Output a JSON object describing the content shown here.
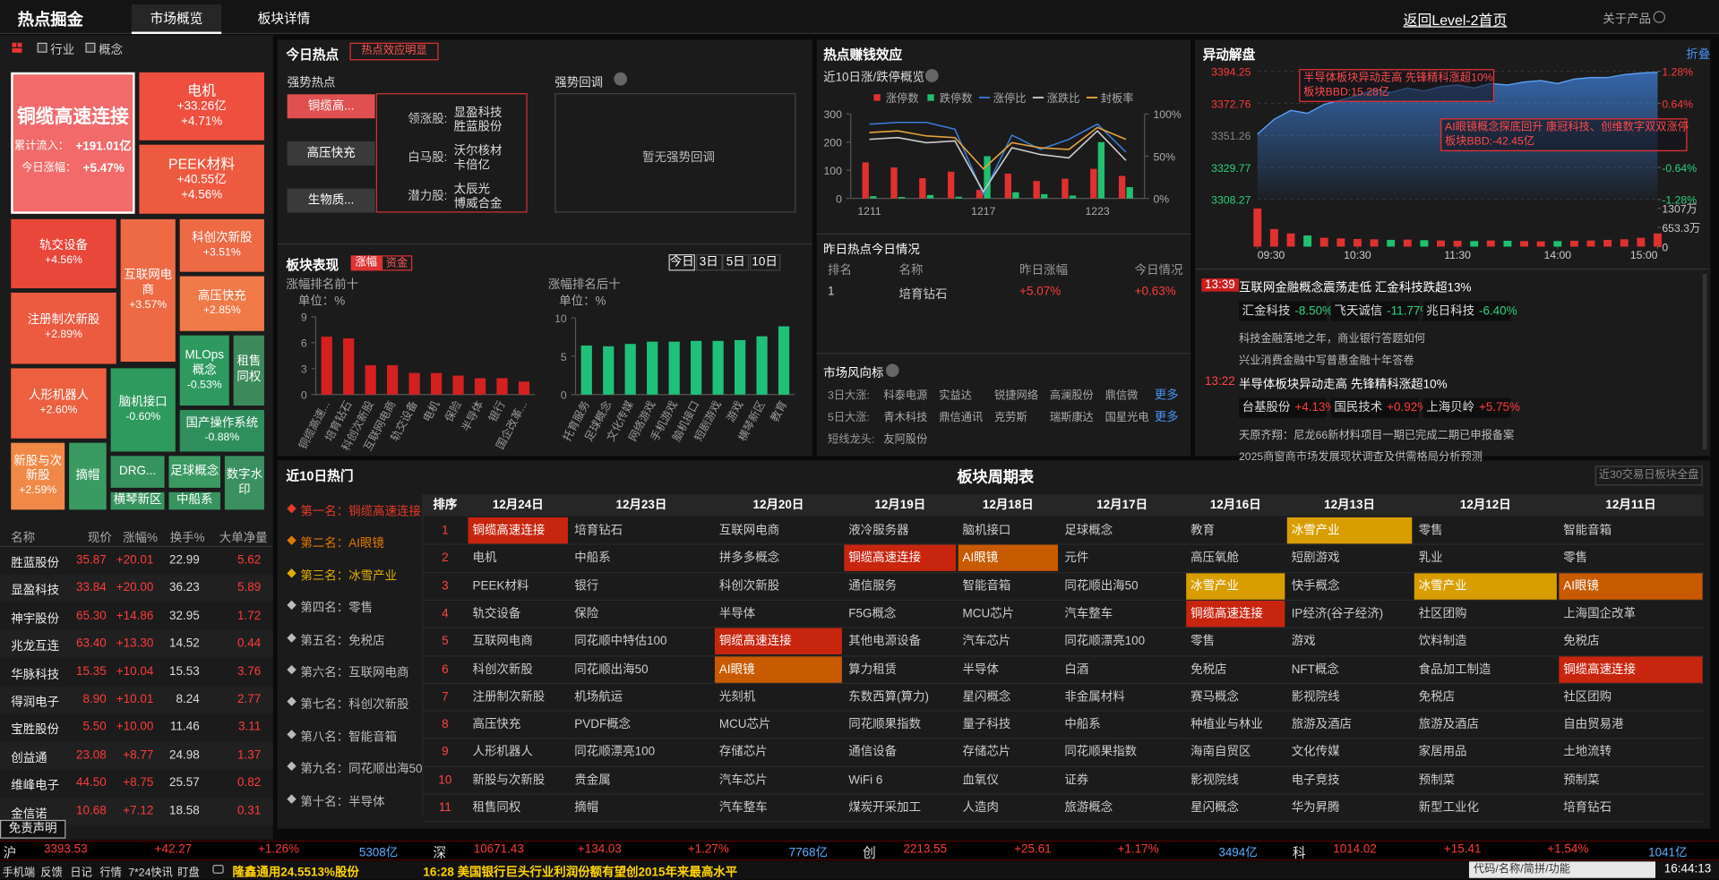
{
  "header": {
    "title": "热点掘金",
    "tabs": [
      "市场概览",
      "板块详情"
    ],
    "back_link": "返回Level-2首页",
    "about": "关于产品"
  },
  "filters": [
    "行业",
    "概念"
  ],
  "treemap": [
    {
      "name": "铜缆高速连接",
      "details": [
        {
          "label": "累计流入：",
          "value": "+191.01亿"
        },
        {
          "label": "今日涨幅：",
          "value": "+5.47%"
        }
      ],
      "color": "#f26a6a"
    },
    {
      "name": "电机",
      "lines": [
        "+33.26亿",
        "+4.71%"
      ],
      "color": "#ef4f3f"
    },
    {
      "name": "PEEK材料",
      "lines": [
        "+40.55亿",
        "+4.56%"
      ],
      "color": "#ee5a40"
    },
    {
      "name": "轨交设备",
      "lines": [
        "+4.56%"
      ],
      "color": "#e8473a"
    },
    {
      "name": "互联网电商",
      "lines": [
        "+3.57%"
      ],
      "color": "#ee6a45"
    },
    {
      "name": "科创次新股",
      "lines": [
        "+3.51%"
      ],
      "color": "#ee6a45"
    },
    {
      "name": "高压快充",
      "lines": [
        "+2.85%"
      ],
      "color": "#f07a48"
    },
    {
      "name": "注册制次新股",
      "lines": [
        "+2.89%"
      ],
      "color": "#ec5a40"
    },
    {
      "name": "MLOps概念",
      "lines": [
        "-0.53%"
      ],
      "color": "#2e9a60"
    },
    {
      "name": "租售同权",
      "lines": [],
      "color": "#3c8a5a"
    },
    {
      "name": "人形机器人",
      "lines": [
        "+2.60%"
      ],
      "color": "#ec6040"
    },
    {
      "name": "脑机接口",
      "lines": [
        "-0.60%"
      ],
      "color": "#2f9a5e"
    },
    {
      "name": "国产操作系统",
      "lines": [
        "-0.88%"
      ],
      "color": "#2e8f5c"
    },
    {
      "name": "新股与次新股",
      "lines": [
        "+2.59%"
      ],
      "color": "#f08848"
    },
    {
      "name": "摘帽",
      "lines": [],
      "color": "#3a9a62"
    },
    {
      "name": "DRG...",
      "lines": [],
      "color": "#37945e"
    },
    {
      "name": "足球概念",
      "lines": [],
      "color": "#3a9a62"
    },
    {
      "name": "数字水印",
      "lines": [],
      "color": "#3a9060"
    },
    {
      "name": "横琴新区",
      "lines": [],
      "color": "#37945e"
    },
    {
      "name": "中船系",
      "lines": [],
      "color": "#37945e"
    }
  ],
  "stock_table": {
    "columns": [
      "名称",
      "现价",
      "涨幅%",
      "换手%",
      "大单净量"
    ],
    "rows": [
      [
        "胜蓝股份",
        "35.87",
        "+20.01",
        "22.99",
        "5.62"
      ],
      [
        "显盈科技",
        "33.84",
        "+20.00",
        "36.23",
        "5.89"
      ],
      [
        "神宇股份",
        "65.30",
        "+14.86",
        "32.95",
        "1.72"
      ],
      [
        "兆龙互连",
        "63.40",
        "+13.30",
        "14.52",
        "0.44"
      ],
      [
        "华脉科技",
        "15.35",
        "+10.04",
        "15.53",
        "3.76"
      ],
      [
        "得润电子",
        "8.90",
        "+10.01",
        "8.24",
        "2.77"
      ],
      [
        "宝胜股份",
        "5.50",
        "+10.00",
        "11.46",
        "3.11"
      ],
      [
        "创益通",
        "23.08",
        "+8.77",
        "24.98",
        "1.37"
      ],
      [
        "维峰电子",
        "44.50",
        "+8.75",
        "25.57",
        "0.82"
      ],
      [
        "金信诺",
        "10.68",
        "+7.12",
        "18.58",
        "0.31"
      ]
    ]
  },
  "disclaimer": "免责声明",
  "today_hot": {
    "title": "今日热点",
    "badge": "热点效应明显",
    "strong_title": "强势热点",
    "strong_items": [
      "铜缆高...",
      "高压快充",
      "生物质..."
    ],
    "leaders": [
      {
        "label": "领涨股:",
        "stocks": [
          "显盈科技",
          "胜蓝股份"
        ]
      },
      {
        "label": "白马股:",
        "stocks": [
          "沃尔核材",
          "卡倍亿"
        ]
      },
      {
        "label": "潜力股:",
        "stocks": [
          "太辰光",
          "博威合金"
        ]
      }
    ],
    "pullback_title": "强势回调",
    "pullback_empty": "暂无强势回调"
  },
  "sector_perf": {
    "title": "板块表现",
    "toggles": [
      "涨幅",
      "资金"
    ],
    "periods": [
      "今日",
      "3日",
      "5日",
      "10日"
    ]
  },
  "money_effect": {
    "title": "热点赚钱效应",
    "subtitle": "近10日涨/跌停概览"
  },
  "yesterday": {
    "title": "昨日热点今日情况",
    "columns": [
      "排名",
      "名称",
      "昨日涨幅",
      "今日情况"
    ],
    "rows": [
      [
        "1",
        "培育钻石",
        "+5.07%",
        "+0.63%"
      ]
    ]
  },
  "vane": {
    "title": "市场风向标",
    "more": "更多",
    "rows": [
      {
        "label": "3日大涨:",
        "stocks": [
          "科泰电源",
          "实益达",
          "锐捷网络",
          "高澜股份",
          "鼎信微"
        ],
        "more": true
      },
      {
        "label": "5日大涨:",
        "stocks": [
          "青木科技",
          "鼎信通讯",
          "克劳斯",
          "瑞斯康达",
          "国星光电"
        ],
        "more": true
      },
      {
        "label": "短线龙头:",
        "stocks": [
          "友阿股份"
        ],
        "more": false
      }
    ]
  },
  "movement": {
    "title": "异动解盘",
    "fold": "折叠",
    "annotations": [
      [
        "半导体板块异动走高 先锋精科涨超10%",
        "板块BBD:15.28亿"
      ],
      [
        "AI眼镜概念探底回升 康冠科技、创维数字双双涨停",
        "板块BBD:-42.45亿"
      ]
    ],
    "news": [
      {
        "time": "13:39",
        "title": "互联网金融概念震荡走低 汇金科技跌超13%",
        "tags": [
          {
            "name": "汇金科技",
            "change": "-8.50%"
          },
          {
            "name": "飞天诚信",
            "change": "-11.77%"
          },
          {
            "name": "兆日科技",
            "change": "-6.40%"
          }
        ],
        "lines": [
          "科技金融落地之年，商业银行答题如何",
          "兴业消费金融中写普惠金融十年答卷"
        ]
      },
      {
        "time": "13:22",
        "title": "半导体板块异动走高 先锋精科涨超10%",
        "tags": [
          {
            "name": "台基股份",
            "change": "+4.13%"
          },
          {
            "name": "国民技术",
            "change": "+0.92%"
          },
          {
            "name": "上海贝岭",
            "change": "+5.75%"
          }
        ],
        "lines": [
          "天原齐翔：尼龙66新材料项目一期已完成二期已申报备案",
          "2025商窗商市场发展现状调查及供需格局分析预测"
        ]
      }
    ]
  },
  "hot10": {
    "title": "近10日热门",
    "items": [
      {
        "rank": "第一名：",
        "name": "铜缆高速连接"
      },
      {
        "rank": "第二名：",
        "name": "AI眼镜"
      },
      {
        "rank": "第三名：",
        "name": "冰雪产业"
      },
      {
        "rank": "第四名：",
        "name": "零售"
      },
      {
        "rank": "第五名：",
        "name": "免税店"
      },
      {
        "rank": "第六名：",
        "name": "互联网电商"
      },
      {
        "rank": "第七名：",
        "name": "科创次新股"
      },
      {
        "rank": "第八名：",
        "name": "智能音箱"
      },
      {
        "rank": "第九名：",
        "name": "同花顺出海50"
      },
      {
        "rank": "第十名：",
        "name": "半导体"
      }
    ]
  },
  "cycle_table": {
    "title": "板块周期表",
    "button": "近30交易日板块全盘",
    "columns": [
      "排序",
      "12月24日",
      "12月23日",
      "12月20日",
      "12月19日",
      "12月18日",
      "12月17日",
      "12月16日",
      "12月13日",
      "12月12日",
      "12月11日"
    ],
    "rows": [
      [
        "1",
        "铜缆高速连接",
        "培育钻石",
        "互联网电商",
        "液冷服务器",
        "脑机接口",
        "足球概念",
        "教育",
        "冰雪产业",
        "零售",
        "智能音箱"
      ],
      [
        "2",
        "电机",
        "中船系",
        "拼多多概念",
        "铜缆高速连接",
        "AI眼镜",
        "元件",
        "高压氧舱",
        "短剧游戏",
        "乳业",
        "零售"
      ],
      [
        "3",
        "PEEK材料",
        "银行",
        "科创次新股",
        "通信服务",
        "智能音箱",
        "同花顺出海50",
        "冰雪产业",
        "快手概念",
        "冰雪产业",
        "AI眼镜"
      ],
      [
        "4",
        "轨交设备",
        "保险",
        "半导体",
        "F5G概念",
        "MCU芯片",
        "汽车整车",
        "铜缆高速连接",
        "IP经济(谷子经济)",
        "社区团购",
        "上海国企改革"
      ],
      [
        "5",
        "互联网电商",
        "同花顺中特估100",
        "铜缆高速连接",
        "其他电源设备",
        "汽车芯片",
        "同花顺漂亮100",
        "零售",
        "游戏",
        "饮料制造",
        "免税店"
      ],
      [
        "6",
        "科创次新股",
        "同花顺出海50",
        "AI眼镜",
        "算力租赁",
        "半导体",
        "白酒",
        "免税店",
        "NFT概念",
        "食品加工制造",
        "铜缆高速连接"
      ],
      [
        "7",
        "注册制次新股",
        "机场航运",
        "光刻机",
        "东数西算(算力)",
        "星闪概念",
        "非金属材料",
        "赛马概念",
        "影视院线",
        "免税店",
        "社区团购"
      ],
      [
        "8",
        "高压快充",
        "PVDF概念",
        "MCU芯片",
        "同花顺果指数",
        "量子科技",
        "中船系",
        "种植业与林业",
        "旅游及酒店",
        "旅游及酒店",
        "自由贸易港"
      ],
      [
        "9",
        "人形机器人",
        "同花顺漂亮100",
        "存储芯片",
        "通信设备",
        "存储芯片",
        "同花顺果指数",
        "海南自贸区",
        "文化传媒",
        "家居用品",
        "土地流转"
      ],
      [
        "10",
        "新股与次新股",
        "贵金属",
        "汽车芯片",
        "WiFi 6",
        "血氧仪",
        "证券",
        "影视院线",
        "电子竞技",
        "预制菜",
        "预制菜"
      ],
      [
        "11",
        "租售同权",
        "摘帽",
        "汽车整车",
        "煤炭开采加工",
        "人造肉",
        "旅游概念",
        "星闪概念",
        "华为昇腾",
        "新型工业化",
        "培育钻石"
      ]
    ],
    "highlight_colors": {
      "铜缆高速连接": "#c8250f",
      "AI眼镜": "#c85a00",
      "冰雪产业": "#d89e00"
    }
  },
  "index_bar": [
    {
      "name": "沪",
      "price": "3393.53",
      "change": "+42.27",
      "pct": "+1.26%",
      "amount": "5308亿"
    },
    {
      "name": "深",
      "price": "10671.43",
      "change": "+134.03",
      "pct": "+1.27%",
      "amount": "7768亿"
    },
    {
      "name": "创",
      "price": "2213.55",
      "change": "+25.61",
      "pct": "+1.17%",
      "amount": "3494亿"
    },
    {
      "name": "科",
      "price": "1014.02",
      "change": "+15.41",
      "pct": "+1.54%",
      "amount": "1041亿"
    }
  ],
  "status_bar": {
    "links": [
      "手机端",
      "反馈",
      "日记",
      "行情",
      "7*24快讯",
      "盯盘"
    ],
    "tickers": [
      "隆鑫通用24.5513%股份",
      "16:28 美国银行巨头行业利润份额有望创2015年来最高水平"
    ],
    "search": "代码/名称/简拼/功能",
    "time": "16:44:13"
  },
  "chart_data": [
    {
      "type": "bar",
      "title": "涨幅排名前十",
      "unit": "单位：%",
      "categories": [
        "铜缆高速...",
        "培育钻石",
        "科创次新股",
        "互联网电商",
        "轨交设备",
        "电机",
        "保险",
        "半导体",
        "银行",
        "国企改革..."
      ],
      "values": [
        6.7,
        6.5,
        3.4,
        3.4,
        2.5,
        2.5,
        2.2,
        1.9,
        1.9,
        1.5
      ],
      "color": "#d42020",
      "ylim": [
        0,
        9
      ],
      "yticks": [
        0,
        3,
        6,
        9
      ]
    },
    {
      "type": "bar",
      "title": "涨幅排名后十",
      "unit": "单位：%",
      "categories": [
        "托育服务",
        "足球概念",
        "文化传媒",
        "网络游戏",
        "手机游戏",
        "脑机接口",
        "短剧游戏",
        "游戏",
        "横琴新区",
        "教育"
      ],
      "values": [
        6.4,
        6.3,
        6.6,
        6.9,
        6.9,
        7.0,
        7.0,
        7.1,
        7.6,
        8.9
      ],
      "color": "#1fc07a",
      "ylim": [
        0,
        10
      ],
      "yticks": [
        0,
        5,
        10
      ]
    },
    {
      "type": "combo",
      "categories": [
        "1211",
        null,
        null,
        null,
        "1217",
        null,
        null,
        null,
        "1223",
        null
      ],
      "series": [
        {
          "name": "涨停数",
          "type": "bar",
          "color": "#e03030",
          "values": [
            128,
            110,
            72,
            95,
            30,
            88,
            62,
            70,
            105,
            80
          ]
        },
        {
          "name": "跌停数",
          "type": "bar",
          "color": "#20c070",
          "values": [
            8,
            5,
            12,
            6,
            150,
            22,
            15,
            10,
            200,
            40
          ]
        },
        {
          "name": "涨停比",
          "type": "line",
          "axis": "y2",
          "color": "#3a7bd5",
          "values": [
            88,
            90,
            90,
            82,
            5,
            75,
            58,
            70,
            88,
            55
          ]
        },
        {
          "name": "涨跌比",
          "type": "line",
          "axis": "y2",
          "color": "#cccccc",
          "values": [
            70,
            72,
            66,
            68,
            8,
            60,
            52,
            48,
            80,
            45
          ]
        },
        {
          "name": "封板率",
          "type": "line",
          "axis": "y2",
          "color": "#e8a33c",
          "values": [
            78,
            80,
            74,
            72,
            35,
            66,
            60,
            58,
            84,
            70
          ]
        }
      ],
      "ylim": [
        0,
        300
      ],
      "yticks": [
        0,
        100,
        200,
        300
      ],
      "y2lim": [
        0,
        100
      ],
      "y2ticks": [
        {
          "value": 0,
          "label": "0%"
        },
        {
          "value": 50,
          "label": "50%"
        },
        {
          "value": 100,
          "label": "100%"
        }
      ]
    },
    {
      "type": "line",
      "x": [
        0,
        10,
        20,
        30,
        40,
        50,
        60,
        70,
        80,
        90,
        100,
        110,
        120,
        130,
        140,
        150,
        160,
        170,
        180,
        190,
        200,
        210,
        220,
        230,
        240
      ],
      "values": [
        3352,
        3362,
        3368,
        3366,
        3372,
        3375,
        3378,
        3382,
        3380,
        3383,
        3381,
        3384,
        3385,
        3383,
        3386,
        3385,
        3387,
        3388,
        3386,
        3389,
        3390,
        3390,
        3392,
        3393,
        3393.53
      ],
      "volume": [
        1300,
        600,
        450,
        380,
        300,
        280,
        260,
        250,
        230,
        240,
        220,
        210,
        200,
        190,
        210,
        200,
        190,
        180,
        190,
        200,
        210,
        230,
        250,
        300,
        450
      ],
      "color": "#3d7fd9",
      "xlim": [
        0,
        240
      ],
      "xticks": [
        {
          "value": 0,
          "label": "09:30"
        },
        {
          "value": 60,
          "label": "10:30"
        },
        {
          "value": 120,
          "label": "11:30"
        },
        {
          "value": 180,
          "label": "14:00"
        },
        {
          "value": 240,
          "label": "15:00"
        }
      ],
      "ylim": [
        3308.27,
        3394.25
      ],
      "yticks": [
        3394.25,
        3372.76,
        3351.26,
        3329.77,
        3308.27
      ],
      "y2lim": [
        -1.28,
        1.28
      ],
      "y2ticks": [
        {
          "value": 1.28,
          "label": "1.28%"
        },
        {
          "value": 0.64,
          "label": "0.64%"
        },
        {
          "value": -0.64,
          "label": "-0.64%"
        },
        {
          "value": -1.28,
          "label": "-1.28%"
        }
      ],
      "vlim": [
        0,
        1307
      ],
      "vticks": [
        {
          "value": 1307,
          "label": "1307万"
        },
        {
          "value": 653.3,
          "label": "653.3万"
        },
        0
      ]
    }
  ]
}
